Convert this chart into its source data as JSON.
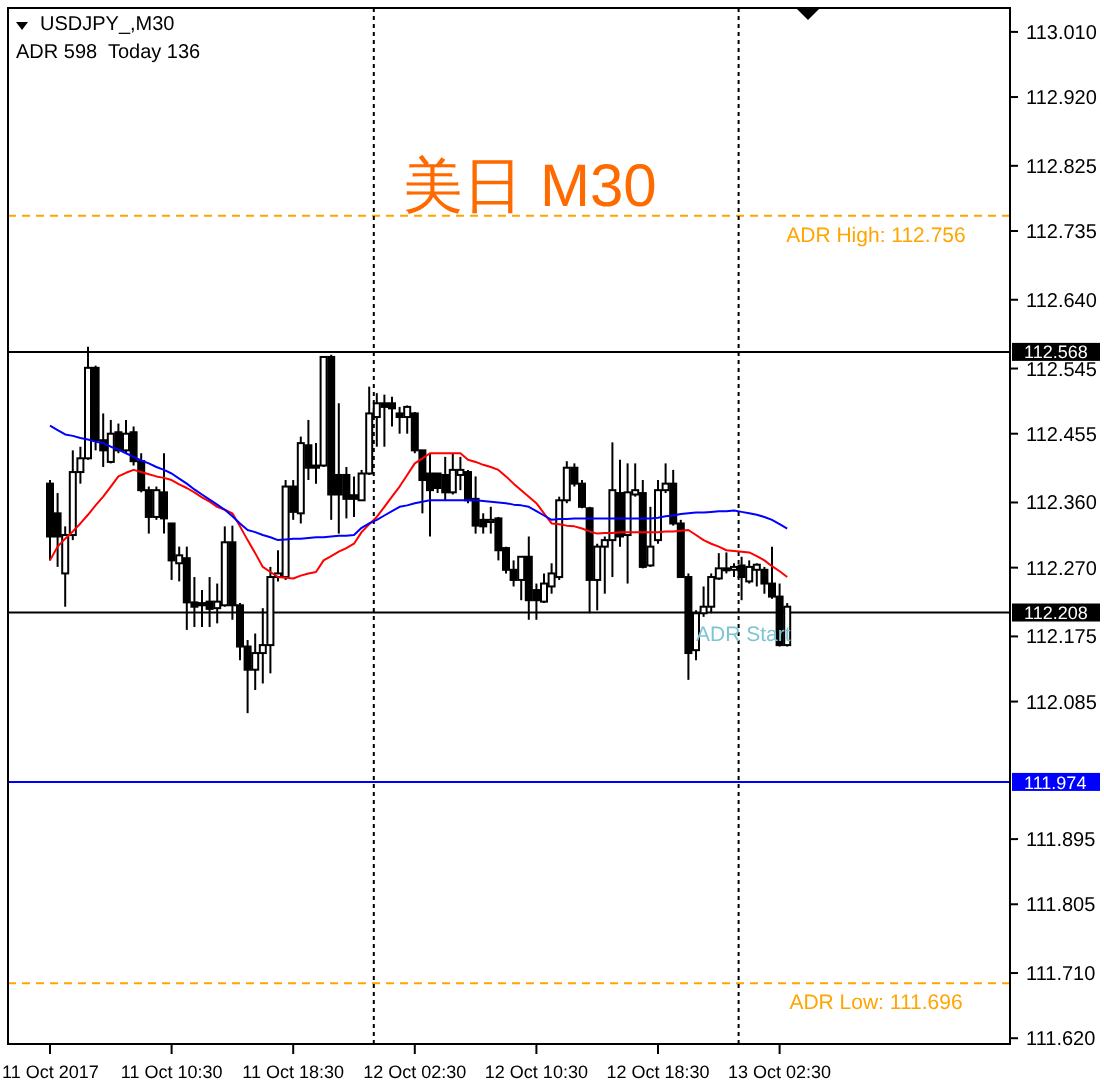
{
  "chart_data": {
    "type": "candlestick",
    "title": "美日 M30",
    "annotations": [
      "USDJPY_,M30",
      "ADR 598  Today 136",
      {
        "text": "ADR Start",
        "y": 112.208
      }
    ],
    "categories": [
      "11 Oct 2017",
      null,
      null,
      null,
      null,
      null,
      null,
      null,
      null,
      null,
      null,
      null,
      null,
      null,
      null,
      null,
      "11 Oct 10:30",
      null,
      null,
      null,
      null,
      null,
      null,
      null,
      null,
      null,
      null,
      null,
      null,
      null,
      null,
      null,
      "11 Oct 18:30",
      null,
      null,
      null,
      null,
      null,
      null,
      null,
      null,
      null,
      null,
      null,
      null,
      null,
      null,
      null,
      "12 Oct 02:30",
      null,
      null,
      null,
      null,
      null,
      null,
      null,
      null,
      null,
      null,
      null,
      null,
      null,
      null,
      null,
      "12 Oct 10:30",
      null,
      null,
      null,
      null,
      null,
      null,
      null,
      null,
      null,
      null,
      null,
      null,
      null,
      null,
      null,
      "12 Oct 18:30",
      null,
      null,
      null,
      null,
      null,
      null,
      null,
      null,
      null,
      null,
      null,
      null,
      null,
      null,
      null,
      "13 Oct 02:30",
      null
    ],
    "ohlc": [
      [
        112.386,
        112.391,
        112.28,
        112.313
      ],
      [
        112.345,
        112.373,
        112.271,
        112.313
      ],
      [
        112.262,
        112.327,
        112.216,
        112.315
      ],
      [
        112.315,
        112.432,
        112.308,
        112.402
      ],
      [
        112.402,
        112.437,
        112.386,
        112.421
      ],
      [
        112.421,
        112.575,
        112.419,
        112.546
      ],
      [
        112.546,
        112.549,
        112.432,
        112.446
      ],
      [
        112.446,
        112.483,
        112.409,
        112.432
      ],
      [
        112.416,
        112.474,
        112.414,
        112.455
      ],
      [
        112.457,
        112.469,
        112.428,
        112.432
      ],
      [
        112.432,
        112.474,
        112.428,
        112.455
      ],
      [
        112.457,
        112.465,
        112.411,
        112.417
      ],
      [
        112.417,
        112.428,
        112.374,
        112.377
      ],
      [
        112.377,
        112.382,
        112.317,
        112.34
      ],
      [
        112.34,
        112.382,
        112.336,
        112.377
      ],
      [
        112.374,
        112.428,
        112.317,
        112.338
      ],
      [
        112.331,
        112.331,
        112.253,
        112.28
      ],
      [
        112.276,
        112.299,
        112.251,
        112.287
      ],
      [
        112.283,
        112.299,
        112.184,
        112.222
      ],
      [
        112.222,
        112.257,
        112.188,
        112.216
      ],
      [
        112.221,
        112.239,
        112.188,
        112.218
      ],
      [
        112.223,
        112.257,
        112.188,
        112.213
      ],
      [
        112.214,
        112.248,
        112.193,
        112.223
      ],
      [
        112.218,
        112.327,
        112.216,
        112.305
      ],
      [
        112.305,
        112.328,
        112.198,
        112.218
      ],
      [
        112.218,
        112.221,
        112.142,
        112.161
      ],
      [
        112.161,
        112.17,
        112.069,
        112.129
      ],
      [
        112.129,
        112.179,
        112.101,
        112.152
      ],
      [
        112.152,
        112.214,
        112.11,
        112.163
      ],
      [
        112.163,
        112.271,
        112.124,
        112.257
      ],
      [
        112.257,
        112.294,
        112.251,
        112.262
      ],
      [
        112.257,
        112.391,
        112.253,
        112.382
      ],
      [
        112.382,
        112.391,
        112.336,
        112.347
      ],
      [
        112.345,
        112.451,
        112.331,
        112.442
      ],
      [
        112.439,
        112.474,
        112.391,
        112.408
      ],
      [
        112.411,
        112.442,
        112.386,
        112.408
      ],
      [
        112.411,
        112.561,
        112.409,
        112.561
      ],
      [
        112.561,
        112.564,
        112.336,
        112.371
      ],
      [
        112.398,
        112.497,
        112.317,
        112.371
      ],
      [
        112.398,
        112.409,
        112.338,
        112.365
      ],
      [
        112.37,
        112.396,
        112.34,
        112.365
      ],
      [
        112.363,
        112.405,
        112.362,
        112.4
      ],
      [
        112.4,
        112.52,
        112.398,
        112.483
      ],
      [
        112.478,
        112.511,
        112.437,
        112.497
      ],
      [
        112.497,
        112.509,
        112.437,
        112.492
      ],
      [
        112.497,
        112.506,
        112.465,
        112.49
      ],
      [
        112.483,
        112.492,
        112.455,
        112.478
      ],
      [
        112.478,
        112.494,
        112.455,
        112.492
      ],
      [
        112.483,
        112.485,
        112.428,
        112.432
      ],
      [
        112.432,
        112.432,
        112.345,
        112.391
      ],
      [
        112.4,
        112.428,
        112.313,
        112.377
      ],
      [
        112.4,
        112.4,
        112.373,
        112.38
      ],
      [
        112.398,
        112.423,
        112.363,
        112.374
      ],
      [
        112.374,
        112.428,
        112.371,
        112.405
      ],
      [
        112.398,
        112.423,
        112.377,
        112.405
      ],
      [
        112.402,
        112.405,
        112.359,
        112.363
      ],
      [
        112.365,
        112.396,
        112.317,
        112.328
      ],
      [
        112.336,
        112.345,
        112.317,
        112.327
      ],
      [
        112.333,
        112.354,
        112.317,
        112.336
      ],
      [
        112.338,
        112.34,
        112.28,
        112.294
      ],
      [
        112.297,
        112.299,
        112.262,
        112.267
      ],
      [
        112.267,
        112.28,
        112.244,
        112.253
      ],
      [
        112.253,
        112.285,
        112.225,
        112.285
      ],
      [
        112.285,
        112.313,
        112.198,
        112.225
      ],
      [
        112.239,
        112.248,
        112.198,
        112.225
      ],
      [
        112.223,
        112.262,
        112.221,
        112.248
      ],
      [
        112.244,
        112.276,
        112.234,
        112.262
      ],
      [
        112.257,
        112.368,
        112.253,
        112.363
      ],
      [
        112.363,
        112.417,
        112.359,
        112.408
      ],
      [
        112.408,
        112.414,
        112.382,
        112.386
      ],
      [
        112.386,
        112.391,
        112.352,
        112.354
      ],
      [
        112.352,
        112.354,
        112.207,
        112.253
      ],
      [
        112.253,
        112.303,
        112.211,
        112.299
      ],
      [
        112.299,
        112.313,
        112.234,
        112.308
      ],
      [
        112.308,
        112.443,
        112.257,
        112.377
      ],
      [
        112.373,
        112.419,
        112.299,
        112.313
      ],
      [
        112.315,
        112.414,
        112.248,
        112.374
      ],
      [
        112.371,
        112.414,
        112.368,
        112.377
      ],
      [
        112.373,
        112.391,
        112.269,
        112.271
      ],
      [
        112.273,
        112.354,
        112.271,
        112.299
      ],
      [
        112.308,
        112.391,
        112.303,
        112.377
      ],
      [
        112.377,
        112.414,
        112.373,
        112.386
      ],
      [
        112.386,
        112.405,
        112.328,
        112.331
      ],
      [
        112.331,
        112.336,
        112.257,
        112.257
      ],
      [
        112.257,
        112.262,
        112.115,
        112.152
      ],
      [
        112.156,
        112.211,
        112.142,
        112.207
      ],
      [
        112.207,
        112.244,
        112.202,
        112.216
      ],
      [
        112.216,
        112.262,
        112.207,
        112.257
      ],
      [
        112.255,
        112.29,
        112.253,
        112.269
      ],
      [
        112.267,
        112.291,
        112.262,
        112.269
      ],
      [
        112.267,
        112.276,
        112.257,
        112.271
      ],
      [
        112.273,
        112.285,
        112.225,
        112.257
      ],
      [
        112.251,
        112.28,
        112.248,
        112.271
      ],
      [
        112.267,
        112.276,
        112.244,
        112.274
      ],
      [
        112.267,
        112.271,
        112.234,
        112.248
      ],
      [
        112.248,
        112.299,
        112.227,
        112.23
      ],
      [
        112.23,
        112.248,
        112.161,
        112.163
      ],
      [
        112.163,
        112.221,
        112.161,
        112.216
      ]
    ],
    "color": "#000000",
    "series": [
      {
        "type": "line",
        "color": "#ff0000",
        "values": [
          112.28,
          112.299,
          112.31,
          112.32,
          112.331,
          112.343,
          112.356,
          112.368,
          112.382,
          112.396,
          112.401,
          112.405,
          112.402,
          112.399,
          112.396,
          112.394,
          112.391,
          112.385,
          112.38,
          112.374,
          112.367,
          112.361,
          112.354,
          112.35,
          112.345,
          112.327,
          112.308,
          112.29,
          112.271,
          112.264,
          112.257,
          112.256,
          112.255,
          112.259,
          112.262,
          112.264,
          112.28,
          112.286,
          112.292,
          112.297,
          112.303,
          112.319,
          112.33,
          112.34,
          112.354,
          112.368,
          112.382,
          112.398,
          112.414,
          112.421,
          112.428,
          112.428,
          112.428,
          112.428,
          112.428,
          112.419,
          112.416,
          112.412,
          112.409,
          112.405,
          112.396,
          112.386,
          112.377,
          112.368,
          112.359,
          112.345,
          112.331,
          112.33,
          112.328,
          112.327,
          112.324,
          112.32,
          112.317,
          112.318,
          112.318,
          112.319,
          112.319,
          112.319,
          112.319,
          112.319,
          112.319,
          112.32,
          112.32,
          112.321,
          112.322,
          112.315,
          112.308,
          112.303,
          112.299,
          112.294,
          112.293,
          112.292,
          112.291,
          112.286,
          112.28,
          112.272,
          112.265,
          112.257
        ]
      },
      {
        "type": "line",
        "color": "#0000ff",
        "values": [
          112.466,
          112.46,
          112.454,
          112.452,
          112.449,
          112.447,
          112.444,
          112.442,
          112.437,
          112.433,
          112.428,
          112.423,
          112.418,
          112.414,
          112.409,
          112.405,
          112.4,
          112.393,
          112.386,
          112.378,
          112.371,
          112.364,
          112.357,
          112.35,
          112.341,
          112.331,
          112.322,
          112.319,
          112.315,
          112.312,
          112.308,
          112.309,
          112.31,
          112.31,
          112.311,
          112.312,
          112.312,
          112.313,
          112.314,
          112.314,
          112.315,
          112.325,
          112.331,
          112.336,
          112.342,
          112.348,
          112.354,
          112.356,
          112.359,
          112.361,
          112.363,
          112.363,
          112.363,
          112.363,
          112.363,
          112.363,
          112.363,
          112.362,
          112.361,
          112.36,
          112.359,
          112.357,
          112.356,
          112.354,
          112.348,
          112.342,
          112.336,
          112.337,
          112.337,
          112.338,
          112.338,
          112.338,
          112.338,
          112.338,
          112.338,
          112.338,
          112.338,
          112.338,
          112.338,
          112.338,
          112.339,
          112.341,
          112.342,
          112.344,
          112.345,
          112.346,
          112.346,
          112.347,
          112.348,
          112.348,
          112.349,
          112.347,
          112.345,
          112.343,
          112.34,
          112.336,
          112.33,
          112.324
        ]
      }
    ],
    "ref_lines": [
      {
        "axis": "y",
        "value": 112.568,
        "label": "112.568",
        "color": "#000000",
        "line_style": "solid"
      },
      {
        "axis": "y",
        "value": 112.208,
        "label": "112.208",
        "color": "#000000",
        "line_style": "solid"
      },
      {
        "axis": "y",
        "value": 111.974,
        "label": "111.974",
        "color": "#0000ff",
        "line_style": "solid"
      },
      {
        "axis": "y",
        "value": 112.756,
        "label": "ADR High: 112.756",
        "color": "#ffa500",
        "line_style": "dashed"
      },
      {
        "axis": "y",
        "value": 111.696,
        "label": "ADR Low: 111.696",
        "color": "#ffa500",
        "line_style": "dashed"
      }
    ],
    "ylim": [
      111.612,
      113.043
    ],
    "yticks": [
      {
        "value": 113.01,
        "label": "113.010"
      },
      {
        "value": 112.92,
        "label": "112.920"
      },
      {
        "value": 112.825,
        "label": "112.825"
      },
      {
        "value": 112.735,
        "label": "112.735"
      },
      {
        "value": 112.64,
        "label": "112.640"
      },
      {
        "value": 112.545,
        "label": "112.545"
      },
      {
        "value": 112.455,
        "label": "112.455"
      },
      {
        "value": 112.36,
        "label": "112.360"
      },
      {
        "value": 112.27,
        "label": "112.270"
      },
      {
        "value": 112.175,
        "label": "112.175"
      },
      {
        "value": 112.085,
        "label": "112.085"
      },
      {
        "value": 111.895,
        "label": "111.895"
      },
      {
        "value": 111.805,
        "label": "111.805"
      },
      {
        "value": 111.71,
        "label": "111.710"
      },
      {
        "value": 111.62,
        "label": "111.620"
      }
    ],
    "grid": false
  }
}
